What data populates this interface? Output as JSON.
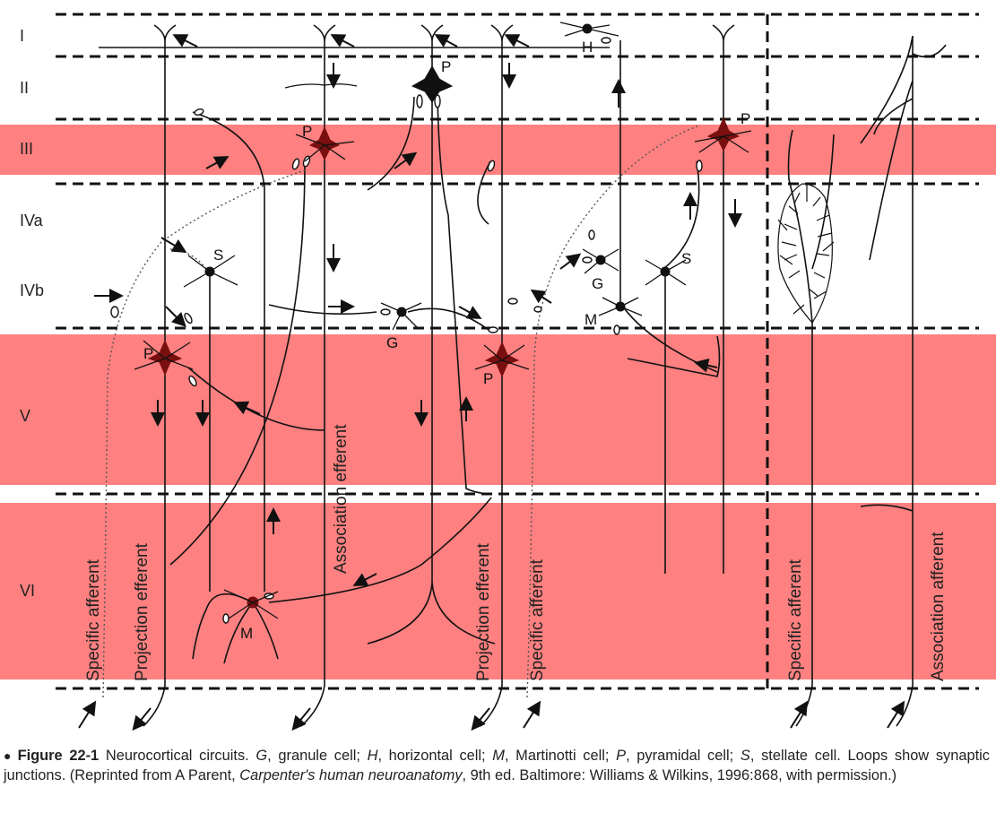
{
  "layers": [
    "I",
    "II",
    "III",
    "IVa",
    "IVb",
    "V",
    "VI"
  ],
  "cell_labels": {
    "horizontal": "H",
    "pyramidal": "P",
    "stellate": "S",
    "granule": "G",
    "martinotti": "M"
  },
  "fiber_labels": {
    "specific_afferent": "Specific afferent",
    "projection_efferent": "Projection efferent",
    "association_efferent": "Association efferent",
    "association_afferent": "Association afferent"
  },
  "colors": {
    "highlight_band": "#ff8080",
    "cell_body": "#7a0f0f",
    "line": "#111111"
  },
  "caption": {
    "figure_number": "Figure 22-1",
    "text_1": "Neurocortical circuits. ",
    "g": "G",
    "g_desc": ", granule cell; ",
    "h": "H",
    "h_desc": ", horizontal cell; ",
    "m": "M",
    "m_desc": ", Martinotti cell; ",
    "p": "P",
    "p_desc": ", pyramidal cell; ",
    "s": "S",
    "s_desc": ", stellate cell. Loops show synaptic junctions. (Reprinted from A Parent, ",
    "book": "Carpenter's human neuroanatomy",
    "text_end": ", 9th ed. Baltimore: Williams & Wilkins, 1996:868, with permission.)"
  }
}
